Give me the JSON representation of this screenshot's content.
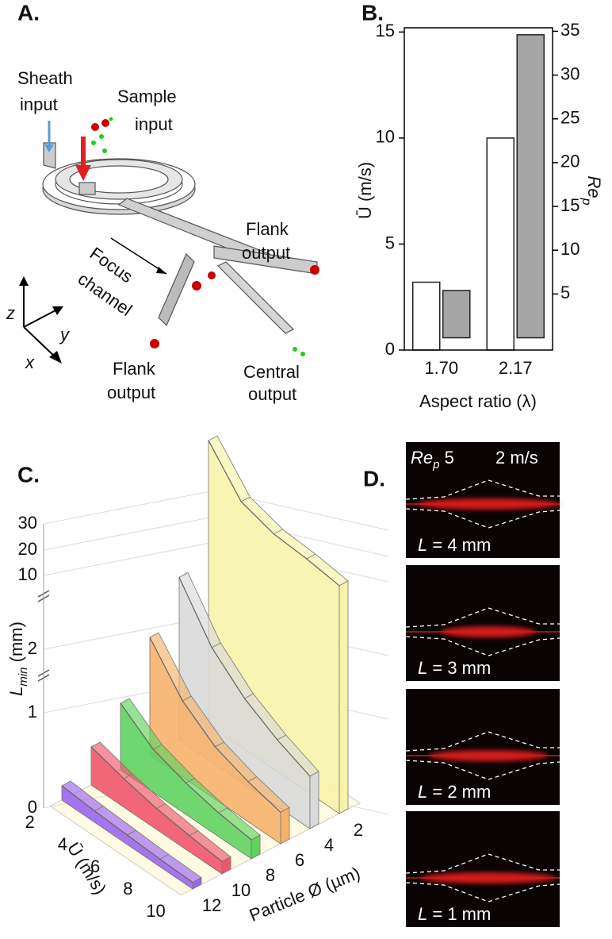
{
  "panel_labels": [
    "A.",
    "B.",
    "C.",
    "D."
  ],
  "diagram": {
    "labels": [
      "Sheath",
      "input",
      "Sample",
      "input",
      "Focus",
      "channel",
      "Flank",
      "output",
      "Flank",
      "output",
      "Central",
      "output",
      "z",
      "y",
      "x"
    ]
  },
  "chart_data": [
    {
      "type": "bar",
      "categories": [
        "1.70",
        "2.17"
      ],
      "x_label": "Aspect ratio (λ)",
      "y_label": "Ū (m/s)",
      "y2_label": {
        "main": "Re",
        "sub": "p"
      },
      "series": [
        {
          "color": "#ffffff",
          "values": [
            3.2,
            10
          ]
        },
        {
          "color": "#a6a6a6",
          "axis": "y2",
          "values": [
            5.4,
            34.6
          ]
        }
      ],
      "ylim": [
        0,
        15.2
      ],
      "yticks": [
        0,
        5,
        10,
        15
      ],
      "y2lim": [
        -1.4,
        35.4
      ],
      "y2ticks": [
        5,
        10,
        15,
        20,
        25,
        30,
        35
      ]
    },
    {
      "type": "ribbon3d",
      "y_label": {
        "main": "L",
        "sub": "min",
        "unit": " (mm)"
      },
      "x_label": "Ū (m/s)",
      "z_label": "Particle Ø (µm)",
      "x": [
        2,
        4,
        6,
        8,
        10
      ],
      "xlim": [
        2,
        10
      ],
      "xticks": [
        2,
        4,
        6,
        8,
        10
      ],
      "ylim": [
        0,
        30
      ],
      "yticks": [
        0,
        1,
        2,
        10,
        20,
        30
      ],
      "depth_categories": [
        "12",
        "10",
        "8",
        "6",
        "4",
        "2"
      ],
      "series": [
        {
          "color": "#9966ee",
          "values": [
            0.15,
            0.12,
            0.1,
            0.08,
            0.07
          ]
        },
        {
          "color": "#f0566a",
          "values": [
            0.4,
            0.3,
            0.22,
            0.17,
            0.13
          ]
        },
        {
          "color": "#5fd35f",
          "values": [
            0.7,
            0.45,
            0.33,
            0.25,
            0.2
          ]
        },
        {
          "color": "#f6b26b",
          "values": [
            1.35,
            0.8,
            0.55,
            0.42,
            0.33
          ]
        },
        {
          "color": "#d9d9d9",
          "values": [
            2.4,
            1.3,
            0.9,
            0.7,
            0.55
          ]
        },
        {
          "color": "#f7f3a8",
          "values": [
            30,
            15,
            11,
            10,
            9.5
          ]
        }
      ]
    }
  ],
  "micrographs": {
    "header": {
      "main": "Re",
      "sub": "p",
      "value": " 5",
      "speed": "2 m/s"
    },
    "frames": [
      {
        "var": "L",
        "text": " = 4 mm"
      },
      {
        "var": "L",
        "text": " = 3 mm"
      },
      {
        "var": "L",
        "text": " = 2 mm"
      },
      {
        "var": "L",
        "text": " = 1 mm"
      }
    ]
  }
}
